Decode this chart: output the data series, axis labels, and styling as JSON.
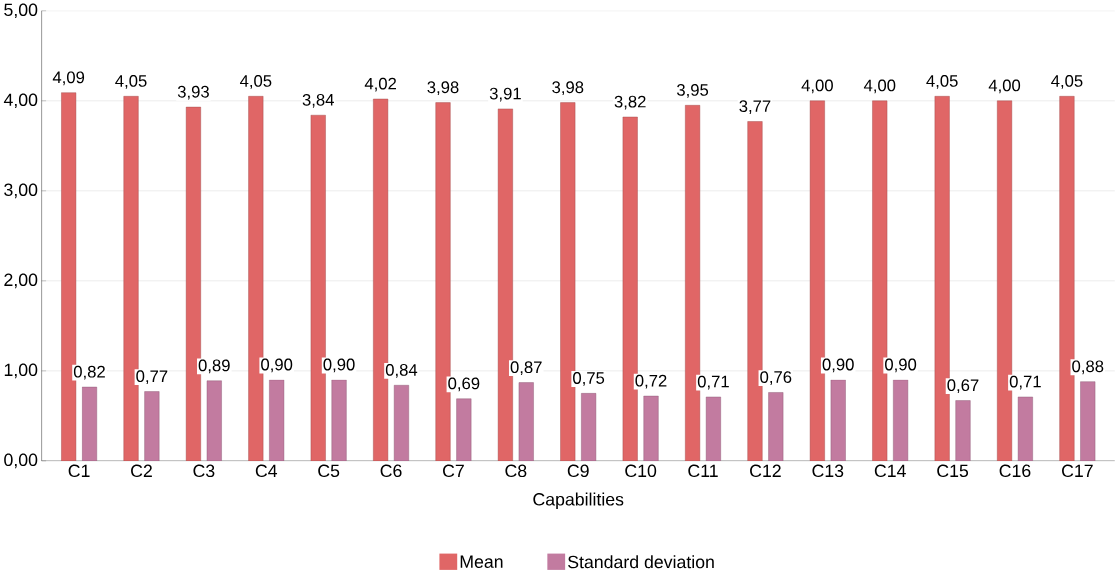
{
  "chart_data": {
    "type": "bar",
    "xlabel": "Capabilities",
    "categories": [
      "C1",
      "C2",
      "C3",
      "C4",
      "C5",
      "C6",
      "C7",
      "C8",
      "C9",
      "C10",
      "C11",
      "C12",
      "C13",
      "C14",
      "C15",
      "C16",
      "C17"
    ],
    "series": [
      {
        "name": "Mean",
        "color": "#e06666",
        "values": [
          4.09,
          4.05,
          3.93,
          4.05,
          3.84,
          4.02,
          3.98,
          3.91,
          3.98,
          3.82,
          3.95,
          3.77,
          4.0,
          4.0,
          4.05,
          4.0,
          4.05
        ],
        "value_labels": [
          "4,09",
          "4,05",
          "3,93",
          "4,05",
          "3,84",
          "4,02",
          "3,98",
          "3,91",
          "3,98",
          "3,82",
          "3,95",
          "3,77",
          "4,00",
          "4,00",
          "4,05",
          "4,00",
          "4,05"
        ]
      },
      {
        "name": "Standard deviation",
        "color": "#c27ba0",
        "values": [
          0.82,
          0.77,
          0.89,
          0.9,
          0.9,
          0.84,
          0.69,
          0.87,
          0.75,
          0.72,
          0.71,
          0.76,
          0.9,
          0.9,
          0.67,
          0.71,
          0.88
        ],
        "value_labels": [
          "0,82",
          "0,77",
          "0,89",
          "0,90",
          "0,90",
          "0,84",
          "0,69",
          "0,87",
          "0,75",
          "0,72",
          "0,71",
          "0,76",
          "0,90",
          "0,90",
          "0,67",
          "0,71",
          "0,88"
        ]
      }
    ],
    "ylim": [
      0,
      5
    ],
    "yticks": [
      {
        "value": 0,
        "label": "0,00"
      },
      {
        "value": 1,
        "label": "1,00"
      },
      {
        "value": 2,
        "label": "2,00"
      },
      {
        "value": 3,
        "label": "3,00"
      },
      {
        "value": 4,
        "label": "4,00"
      },
      {
        "value": 5,
        "label": "5,00"
      }
    ],
    "grid": "y",
    "legend": "bottom"
  }
}
